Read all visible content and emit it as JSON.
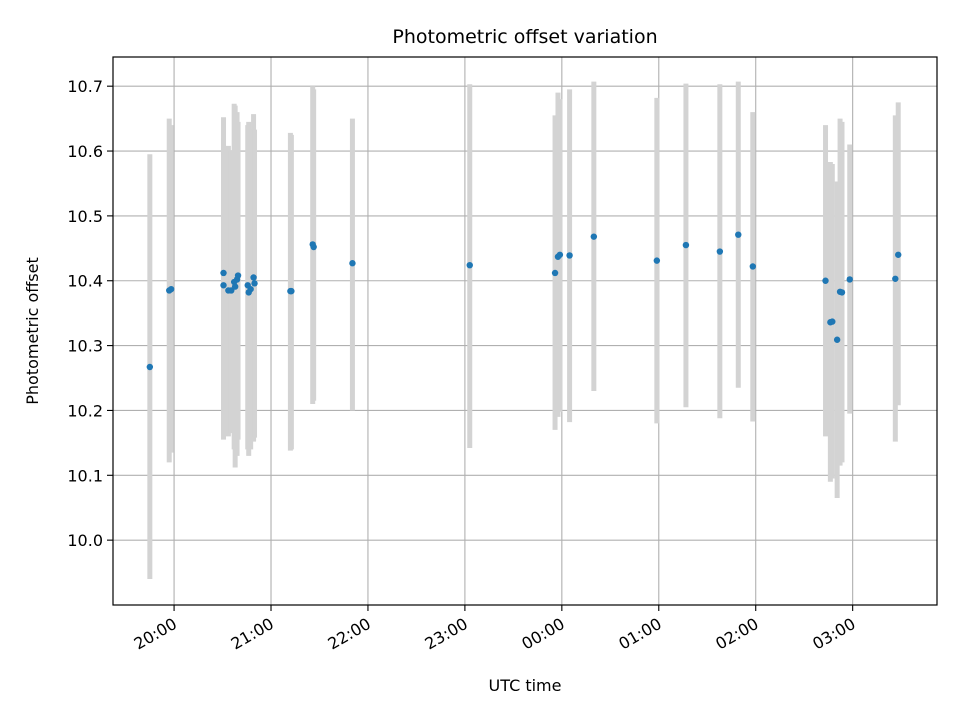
{
  "chart_data": {
    "type": "scatter",
    "title": "Photometric offset variation",
    "xlabel": "UTC time",
    "ylabel": "Photometric offset",
    "x_axis_kind": "time",
    "x_origin_label": "20:00",
    "x_ticks": [
      "20:00",
      "21:00",
      "22:00",
      "23:00",
      "00:00",
      "01:00",
      "02:00",
      "03:00"
    ],
    "y_ticks": [
      "10.0",
      "10.1",
      "10.2",
      "10.3",
      "10.4",
      "10.5",
      "10.6",
      "10.7"
    ],
    "xlim_hours": [
      -0.63,
      7.87
    ],
    "ylim": [
      9.9,
      10.745
    ],
    "grid": true,
    "point_color": "#1f77b4",
    "errorbar_color": "#d3d3d3",
    "points": [
      {
        "t": -0.25,
        "y": 10.267,
        "lo": 9.94,
        "hi": 10.595
      },
      {
        "t": -0.05,
        "y": 10.385,
        "lo": 10.12,
        "hi": 10.65
      },
      {
        "t": -0.03,
        "y": 10.387,
        "lo": 10.135,
        "hi": 10.64
      },
      {
        "t": 0.51,
        "y": 10.412,
        "lo": 10.155,
        "hi": 10.652
      },
      {
        "t": 0.51,
        "y": 10.393,
        "lo": 10.17,
        "hi": 10.62
      },
      {
        "t": 0.56,
        "y": 10.385,
        "lo": 10.16,
        "hi": 10.608
      },
      {
        "t": 0.59,
        "y": 10.385,
        "lo": 10.165,
        "hi": 10.6
      },
      {
        "t": 0.62,
        "y": 10.398,
        "lo": 10.14,
        "hi": 10.673
      },
      {
        "t": 0.63,
        "y": 10.391,
        "lo": 10.112,
        "hi": 10.67
      },
      {
        "t": 0.65,
        "y": 10.402,
        "lo": 10.13,
        "hi": 10.66
      },
      {
        "t": 0.66,
        "y": 10.408,
        "lo": 10.155,
        "hi": 10.645
      },
      {
        "t": 0.76,
        "y": 10.393,
        "lo": 10.14,
        "hi": 10.64
      },
      {
        "t": 0.77,
        "y": 10.382,
        "lo": 10.13,
        "hi": 10.645
      },
      {
        "t": 0.79,
        "y": 10.387,
        "lo": 10.14,
        "hi": 10.635
      },
      {
        "t": 0.82,
        "y": 10.405,
        "lo": 10.152,
        "hi": 10.657
      },
      {
        "t": 0.83,
        "y": 10.396,
        "lo": 10.158,
        "hi": 10.633
      },
      {
        "t": 1.2,
        "y": 10.384,
        "lo": 10.138,
        "hi": 10.628
      },
      {
        "t": 1.21,
        "y": 10.384,
        "lo": 10.14,
        "hi": 10.625
      },
      {
        "t": 1.43,
        "y": 10.456,
        "lo": 10.21,
        "hi": 10.7
      },
      {
        "t": 1.44,
        "y": 10.452,
        "lo": 10.215,
        "hi": 10.695
      },
      {
        "t": 1.84,
        "y": 10.427,
        "lo": 10.2,
        "hi": 10.65
      },
      {
        "t": 3.05,
        "y": 10.424,
        "lo": 10.142,
        "hi": 10.703
      },
      {
        "t": 3.93,
        "y": 10.412,
        "lo": 10.17,
        "hi": 10.655
      },
      {
        "t": 3.96,
        "y": 10.437,
        "lo": 10.19,
        "hi": 10.69
      },
      {
        "t": 3.98,
        "y": 10.44,
        "lo": 10.198,
        "hi": 10.68
      },
      {
        "t": 4.08,
        "y": 10.439,
        "lo": 10.182,
        "hi": 10.695
      },
      {
        "t": 4.33,
        "y": 10.468,
        "lo": 10.23,
        "hi": 10.707
      },
      {
        "t": 4.98,
        "y": 10.431,
        "lo": 10.18,
        "hi": 10.682
      },
      {
        "t": 5.28,
        "y": 10.455,
        "lo": 10.205,
        "hi": 10.704
      },
      {
        "t": 5.63,
        "y": 10.445,
        "lo": 10.188,
        "hi": 10.703
      },
      {
        "t": 5.82,
        "y": 10.471,
        "lo": 10.235,
        "hi": 10.707
      },
      {
        "t": 5.97,
        "y": 10.422,
        "lo": 10.183,
        "hi": 10.66
      },
      {
        "t": 6.72,
        "y": 10.4,
        "lo": 10.16,
        "hi": 10.64
      },
      {
        "t": 6.77,
        "y": 10.336,
        "lo": 10.09,
        "hi": 10.583
      },
      {
        "t": 6.79,
        "y": 10.337,
        "lo": 10.095,
        "hi": 10.58
      },
      {
        "t": 6.84,
        "y": 10.309,
        "lo": 10.065,
        "hi": 10.553
      },
      {
        "t": 6.87,
        "y": 10.383,
        "lo": 10.115,
        "hi": 10.65
      },
      {
        "t": 6.89,
        "y": 10.382,
        "lo": 10.12,
        "hi": 10.645
      },
      {
        "t": 6.97,
        "y": 10.402,
        "lo": 10.195,
        "hi": 10.61
      },
      {
        "t": 7.44,
        "y": 10.403,
        "lo": 10.152,
        "hi": 10.655
      },
      {
        "t": 7.47,
        "y": 10.44,
        "lo": 10.208,
        "hi": 10.675
      }
    ]
  }
}
